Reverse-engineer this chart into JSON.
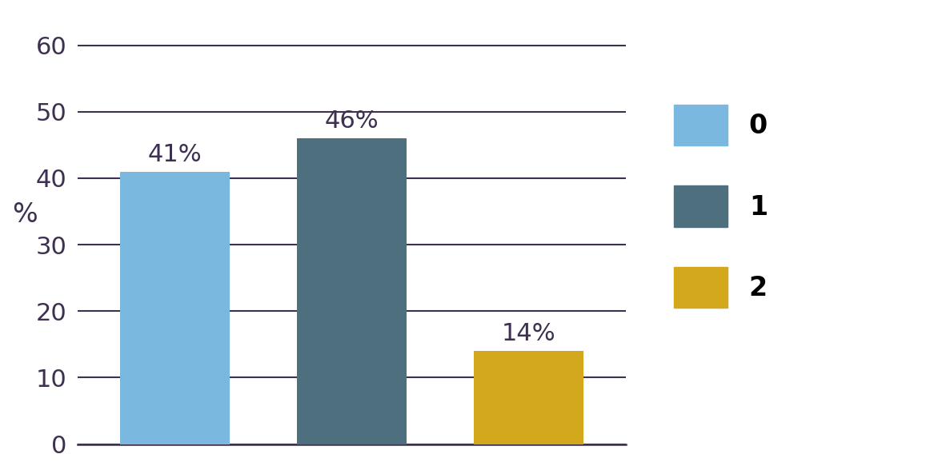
{
  "categories": [
    "0",
    "1",
    "2"
  ],
  "values": [
    41,
    46,
    14
  ],
  "bar_colors": [
    "#7ab8e0",
    "#4e6f7e",
    "#d4a81c"
  ],
  "labels": [
    "41%",
    "46%",
    "14%"
  ],
  "ylabel": "%",
  "ylim": [
    0,
    65
  ],
  "yticks": [
    0,
    10,
    20,
    30,
    40,
    50,
    60
  ],
  "legend_labels": [
    "0",
    "1",
    "2"
  ],
  "legend_colors": [
    "#7ab8e0",
    "#4e6f7e",
    "#d4a81c"
  ],
  "background_color": "#ffffff",
  "grid_color": "#3d3050",
  "label_fontsize": 22,
  "tick_fontsize": 22,
  "ylabel_fontsize": 24,
  "legend_fontsize": 24,
  "bar_width": 0.62
}
